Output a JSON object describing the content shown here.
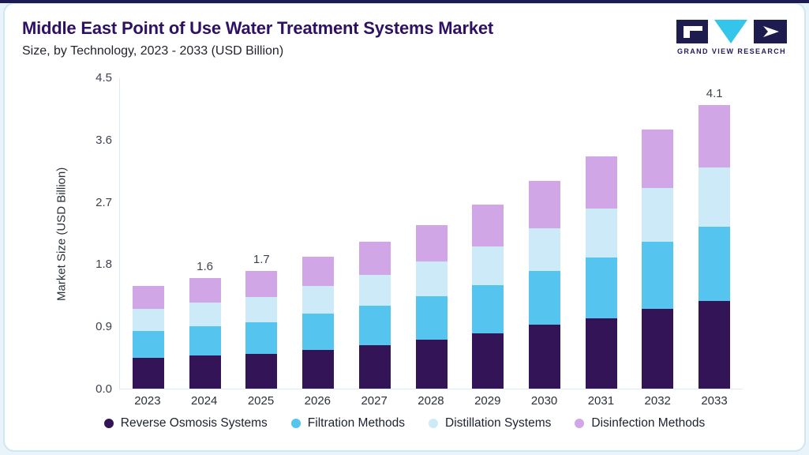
{
  "header": {
    "title": "Middle East Point of Use Water Treatment Systems Market",
    "subtitle": "Size, by Technology, 2023 - 2033 (USD Billion)",
    "logo_text": "GRAND VIEW RESEARCH"
  },
  "chart_data": {
    "type": "bar",
    "stacked": true,
    "title": "Middle East Point of Use Water Treatment Systems Market Size, by Technology, 2023 - 2033 (USD Billion)",
    "xlabel": "",
    "ylabel": "Market Size (USD Billion)",
    "ylim": [
      0,
      4.5
    ],
    "ytick_labels": [
      "0.0",
      "0.9",
      "1.8",
      "2.7",
      "3.6",
      "4.5"
    ],
    "grid": false,
    "legend_position": "bottom",
    "categories": [
      "2023",
      "2024",
      "2025",
      "2026",
      "2027",
      "2028",
      "2029",
      "2030",
      "2031",
      "2032",
      "2033"
    ],
    "series": [
      {
        "name": "Reverse Osmosis Systems",
        "color": "#321457",
        "values": [
          0.45,
          0.48,
          0.5,
          0.56,
          0.63,
          0.71,
          0.8,
          0.92,
          1.02,
          1.15,
          1.27
        ]
      },
      {
        "name": "Filtration Methods",
        "color": "#55c4ef",
        "values": [
          0.38,
          0.42,
          0.46,
          0.52,
          0.57,
          0.63,
          0.7,
          0.78,
          0.88,
          0.97,
          1.07
        ]
      },
      {
        "name": "Distillation Systems",
        "color": "#cdeaf8",
        "values": [
          0.32,
          0.34,
          0.36,
          0.4,
          0.45,
          0.5,
          0.56,
          0.62,
          0.7,
          0.78,
          0.86
        ]
      },
      {
        "name": "Disinfection Methods",
        "color": "#d1a6e6",
        "values": [
          0.33,
          0.36,
          0.38,
          0.43,
          0.48,
          0.53,
          0.6,
          0.68,
          0.76,
          0.85,
          0.9
        ]
      }
    ],
    "total_labels": [
      "",
      "1.6",
      "1.7",
      "",
      "",
      "",
      "",
      "",
      "",
      "",
      "4.1"
    ]
  },
  "logo_colors": {
    "navy": "#1e1b4e",
    "cyan": "#33c5ea"
  }
}
